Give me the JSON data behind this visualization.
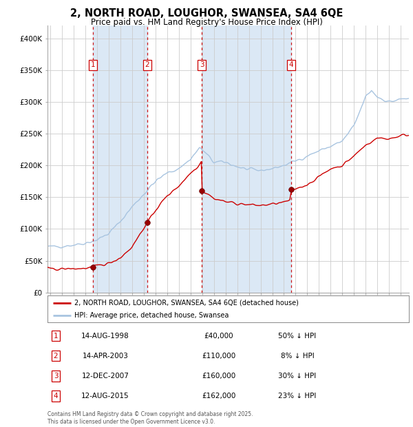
{
  "title": "2, NORTH ROAD, LOUGHOR, SWANSEA, SA4 6QE",
  "subtitle": "Price paid vs. HM Land Registry's House Price Index (HPI)",
  "title_fontsize": 10.5,
  "subtitle_fontsize": 8.5,
  "ylim": [
    0,
    420000
  ],
  "yticks": [
    0,
    50000,
    100000,
    150000,
    200000,
    250000,
    300000,
    350000,
    400000
  ],
  "ytick_labels": [
    "£0",
    "£50K",
    "£100K",
    "£150K",
    "£200K",
    "£250K",
    "£300K",
    "£350K",
    "£400K"
  ],
  "hpi_color": "#a8c4e0",
  "price_color": "#cc0000",
  "bg_color": "#dbe8f5",
  "grid_color": "#ffffff",
  "sale_years": [
    1998.622,
    2003.292,
    2007.958,
    2015.622
  ],
  "sale_prices": [
    40000,
    110000,
    160000,
    162000
  ],
  "sale_labels": [
    "1",
    "2",
    "3",
    "4"
  ],
  "legend_house_label": "2, NORTH ROAD, LOUGHOR, SWANSEA, SA4 6QE (detached house)",
  "legend_hpi_label": "HPI: Average price, detached house, Swansea",
  "table_entries": [
    {
      "num": "1",
      "date": "14-AUG-1998",
      "price": "£40,000",
      "pct": "50% ↓ HPI"
    },
    {
      "num": "2",
      "date": "14-APR-2003",
      "price": "£110,000",
      "pct": "8% ↓ HPI"
    },
    {
      "num": "3",
      "date": "12-DEC-2007",
      "price": "£160,000",
      "pct": "30% ↓ HPI"
    },
    {
      "num": "4",
      "date": "12-AUG-2015",
      "price": "£162,000",
      "pct": "23% ↓ HPI"
    }
  ],
  "footnote": "Contains HM Land Registry data © Crown copyright and database right 2025.\nThis data is licensed under the Open Government Licence v3.0.",
  "xstart": 1994.75,
  "xend": 2025.7,
  "hpi_keypoints": [
    [
      1995.0,
      72000
    ],
    [
      1996.0,
      73000
    ],
    [
      1997.0,
      75000
    ],
    [
      1998.0,
      78000
    ],
    [
      1999.0,
      83000
    ],
    [
      2000.0,
      93000
    ],
    [
      2001.0,
      112000
    ],
    [
      2002.0,
      135000
    ],
    [
      2003.0,
      155000
    ],
    [
      2004.0,
      175000
    ],
    [
      2005.0,
      188000
    ],
    [
      2006.0,
      195000
    ],
    [
      2007.0,
      210000
    ],
    [
      2007.8,
      228000
    ],
    [
      2008.5,
      215000
    ],
    [
      2009.0,
      205000
    ],
    [
      2010.0,
      205000
    ],
    [
      2011.0,
      198000
    ],
    [
      2012.0,
      193000
    ],
    [
      2013.0,
      192000
    ],
    [
      2014.0,
      195000
    ],
    [
      2015.0,
      200000
    ],
    [
      2016.0,
      207000
    ],
    [
      2017.0,
      215000
    ],
    [
      2018.0,
      223000
    ],
    [
      2019.0,
      230000
    ],
    [
      2020.0,
      238000
    ],
    [
      2021.0,
      262000
    ],
    [
      2022.0,
      308000
    ],
    [
      2022.5,
      318000
    ],
    [
      2023.0,
      308000
    ],
    [
      2024.0,
      300000
    ],
    [
      2025.3,
      305000
    ]
  ],
  "price_keypoints": [
    [
      1995.0,
      37000
    ],
    [
      1996.0,
      37000
    ],
    [
      1997.0,
      37500
    ],
    [
      1998.0,
      38000
    ],
    [
      1998.55,
      39500
    ],
    [
      1998.622,
      40000
    ],
    [
      1998.63,
      40000
    ],
    [
      1999.0,
      42000
    ],
    [
      2000.0,
      46000
    ],
    [
      2001.0,
      55000
    ],
    [
      2002.0,
      72000
    ],
    [
      2003.0,
      102000
    ],
    [
      2003.28,
      108000
    ],
    [
      2003.292,
      110000
    ],
    [
      2003.3,
      110000
    ],
    [
      2003.5,
      115000
    ],
    [
      2004.0,
      130000
    ],
    [
      2005.0,
      152000
    ],
    [
      2006.0,
      168000
    ],
    [
      2007.0,
      188000
    ],
    [
      2007.7,
      200000
    ],
    [
      2007.92,
      207000
    ],
    [
      2007.958,
      160000
    ],
    [
      2008.0,
      160000
    ],
    [
      2008.5,
      155000
    ],
    [
      2009.0,
      148000
    ],
    [
      2010.0,
      143000
    ],
    [
      2011.0,
      140000
    ],
    [
      2012.0,
      138000
    ],
    [
      2013.0,
      137000
    ],
    [
      2014.0,
      139000
    ],
    [
      2015.0,
      142000
    ],
    [
      2015.55,
      145000
    ],
    [
      2015.622,
      162000
    ],
    [
      2015.63,
      162000
    ],
    [
      2016.0,
      163000
    ],
    [
      2017.0,
      170000
    ],
    [
      2018.0,
      182000
    ],
    [
      2019.0,
      195000
    ],
    [
      2020.0,
      200000
    ],
    [
      2021.0,
      215000
    ],
    [
      2022.0,
      232000
    ],
    [
      2023.0,
      243000
    ],
    [
      2024.0,
      242000
    ],
    [
      2025.3,
      248000
    ]
  ]
}
